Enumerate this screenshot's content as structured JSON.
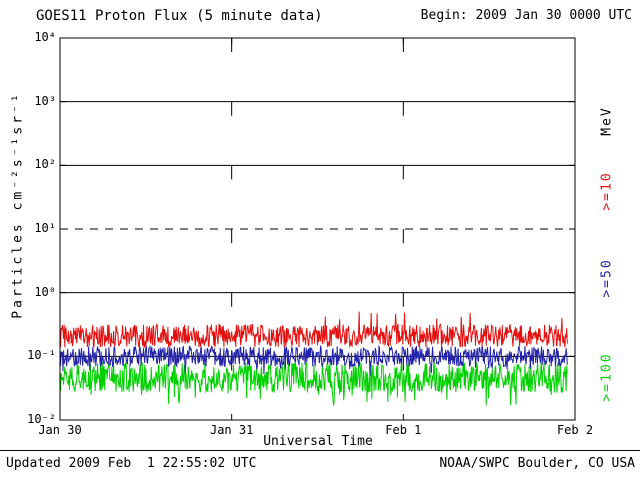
{
  "chart_data": {
    "type": "line",
    "title": "GOES11 Proton Flux (5 minute data)",
    "begin_label": "Begin: 2009 Jan 30 0000 UTC",
    "xlabel": "Universal Time",
    "ylabel": "Particles cm⁻²s⁻¹sr⁻¹",
    "x_axis": {
      "start_utc": "2009 Jan 30 0000 UTC",
      "days": 3,
      "ticks": [
        {
          "label": "Jan 30",
          "day": 0
        },
        {
          "label": "Jan 31",
          "day": 1
        },
        {
          "label": "Feb 1",
          "day": 2
        },
        {
          "label": "Feb 2",
          "day": 3
        }
      ]
    },
    "y_axis": {
      "scale": "log10",
      "min_exp": -2,
      "max_exp": 4,
      "tick_exps": [
        4,
        3,
        2,
        1,
        0,
        -1,
        -2
      ],
      "tick_labels": [
        "10⁴",
        "10³",
        "10²",
        "10¹",
        "10⁰",
        "10⁻¹",
        "10⁻²"
      ]
    },
    "grid": {
      "solid_h_exps": [
        3,
        2,
        0,
        -1
      ],
      "dashed_h_exps": [
        1
      ],
      "dashed_v_days": [
        1,
        2
      ]
    },
    "right_axis_labels": [
      {
        "text": "MeV",
        "color": "#000000"
      },
      {
        "text": ">=10",
        "color": "#e41010"
      },
      {
        "text": ">=50",
        "color": "#2222aa"
      },
      {
        "text": ">=100",
        "color": "#00d000"
      }
    ],
    "series": [
      {
        "name": ">=10",
        "unit": "MeV",
        "color": "#e41010",
        "cadence_minutes": 5,
        "start_day": 0,
        "end_day": 2.955,
        "approx_log10_mean": -0.68,
        "approx_log10_spread": 0.18,
        "spike_prob": 0.03,
        "spike_log10_delta": 0.3,
        "approx_flux_range": [
          0.09,
          0.5
        ]
      },
      {
        "name": ">=50",
        "unit": "MeV",
        "color": "#2222aa",
        "cadence_minutes": 5,
        "start_day": 0,
        "end_day": 2.955,
        "approx_log10_mean": -1.0,
        "approx_log10_spread": 0.16,
        "spike_prob": 0.05,
        "spike_log10_delta": -0.18,
        "approx_flux_range": [
          0.05,
          0.2
        ]
      },
      {
        "name": ">=100",
        "unit": "MeV",
        "color": "#00d000",
        "cadence_minutes": 5,
        "start_day": 0,
        "end_day": 2.955,
        "approx_log10_mean": -1.33,
        "approx_log10_spread": 0.24,
        "spike_prob": 0.1,
        "spike_log10_delta": -0.22,
        "approx_flux_range": [
          0.02,
          0.1
        ]
      }
    ]
  },
  "footer": {
    "updated": "Updated 2009 Feb  1 22:55:02 UTC",
    "credit": "NOAA/SWPC Boulder, CO USA"
  }
}
